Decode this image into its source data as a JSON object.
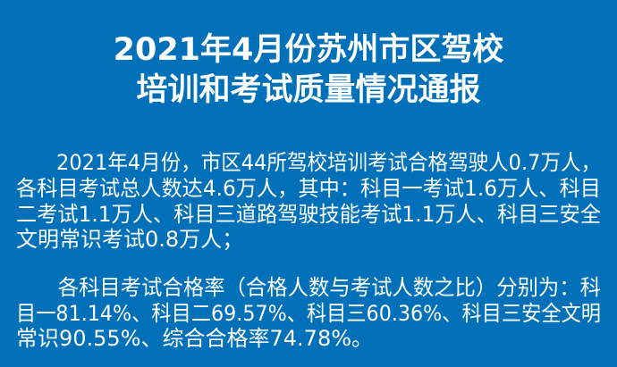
{
  "title": {
    "line1": "2021年4月份苏州市区驾校",
    "line2": "培训和考试质量情况通报"
  },
  "paragraph1": [
    "　　2021年4月份，市区44所驾校培训考试合格驾驶人0.7万人，",
    "各科目考试总人数达4.6万人，其中：科目一考试1.6万人、科目",
    "二考试1.1万人、科目三道路驾驶技能考试1.1万人、科目三安全",
    "文明常识考试0.8万人；"
  ],
  "paragraph2": [
    "　　各科目考试合格率（合格人数与考试人数之比）分别为：科",
    "目一81.14%、科目二69.57%、科目三60.36%、科目三安全文明",
    "常识90.55%、综合合格率74.78%。"
  ],
  "colors": {
    "background": "#0070b8",
    "text": "#ffffff"
  }
}
